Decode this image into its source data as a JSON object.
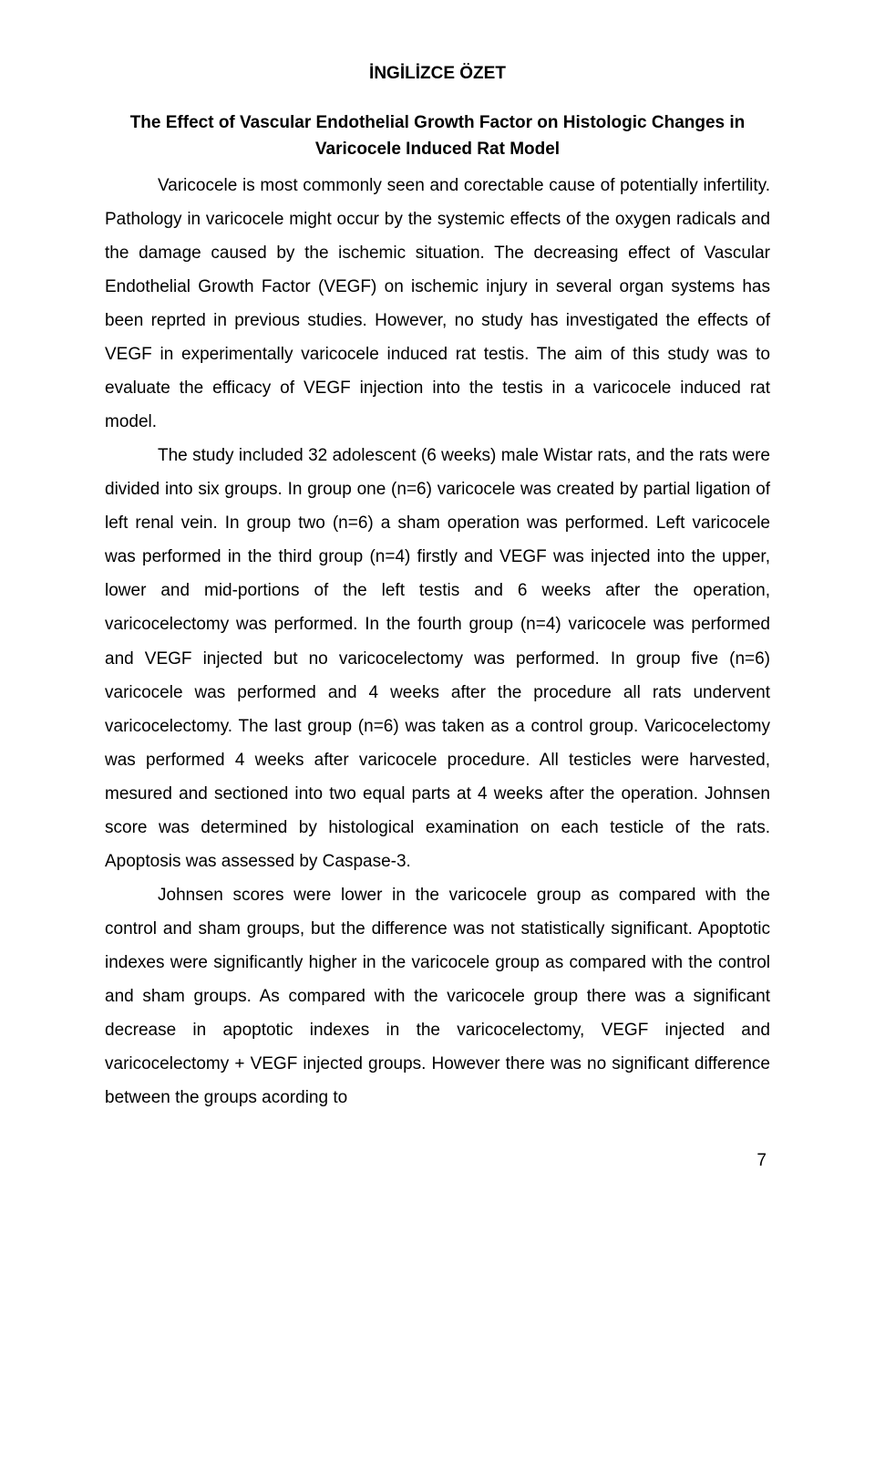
{
  "title": "İNGİLİZCE ÖZET",
  "subtitle": "The Effect of Vascular Endothelial Growth Factor on Histologic Changes in Varicocele Induced Rat  Model",
  "paragraphs": {
    "p1": "Varicocele is most commonly seen and corectable cause of potentially infertility. Pathology in varicocele might occur by the systemic effects of the oxygen radicals and the damage caused by the ischemic situation. The decreasing effect of Vascular Endothelial Growth Factor (VEGF) on ischemic injury in several organ systems has been reprted in previous studies. However, no study has investigated the effects of VEGF in experimentally varicocele induced rat testis. The aim of this study was to evaluate the efficacy of VEGF injection into the testis in a varicocele induced rat model.",
    "p2": "The study included 32 adolescent (6 weeks) male Wistar rats, and  the rats were divided into six groups. In group one (n=6) varicocele was created by partial ligation of left renal vein. In group two (n=6) a sham operation was performed. Left varicocele was performed in the third group (n=4) firstly and VEGF was injected into the upper, lower and mid-portions of the left testis and 6 weeks after the operation, varicocelectomy was performed. In the fourth group (n=4) varicocele was performed and VEGF injected but no varicocelectomy was performed. In group five (n=6) varicocele was performed and 4 weeks after the procedure all rats undervent varicocelectomy. The last group (n=6) was taken as a control group. Varicocelectomy was performed 4 weeks after varicocele procedure. All testicles were harvested, mesured and sectioned into two equal parts at 4 weeks  after the operation.  Johnsen score was determined by histological examination on each testicle of the rats. Apoptosis was assessed by Caspase-3.",
    "p3": "Johnsen scores were lower in the varicocele group as compared with the control and sham groups, but the difference was not statistically significant. Apoptotic indexes  were significantly higher in the varicocele group as compared with the control  and sham groups. As compared with the varicocele group there was a significant decrease in apoptotic indexes in the varicocelectomy, VEGF injected and varicocelectomy + VEGF injected groups. However there was no significant difference between the groups acording to"
  },
  "pageNumber": "7",
  "style": {
    "background": "#ffffff",
    "textColor": "#000000",
    "fontSize": 19,
    "lineHeight": 1.95,
    "titleFontWeight": "bold",
    "pageWidth": 960,
    "pageHeight": 1626
  }
}
